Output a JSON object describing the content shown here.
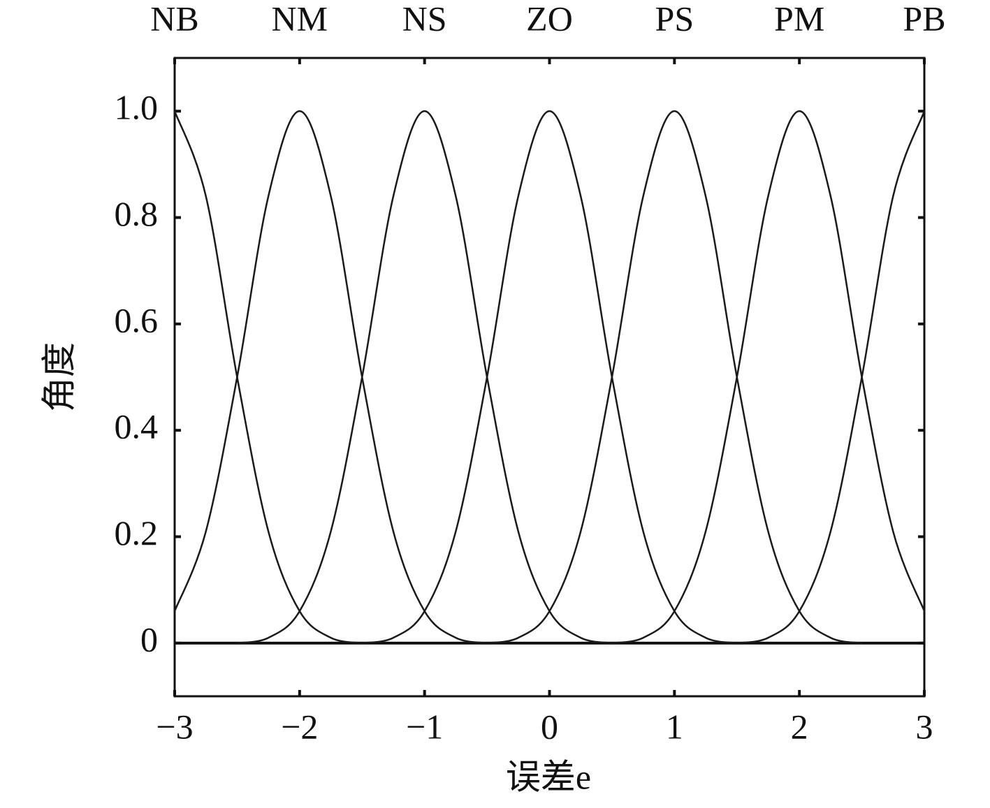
{
  "chart_data": {
    "type": "line",
    "x_label": "误差e",
    "y_label": "角度",
    "x": [
      -3,
      -2.75,
      -2.5,
      -2.25,
      -2,
      -1.75,
      -1.5,
      -1.25,
      -1,
      -0.75,
      -0.5,
      -0.25,
      0,
      0.25,
      0.5,
      0.75,
      1,
      1.25,
      1.5,
      1.75,
      2,
      2.25,
      2.5,
      2.75,
      3
    ],
    "series": [
      {
        "name": "NB",
        "color": "#1a1a1a",
        "values": [
          1,
          0.84,
          0.5,
          0.21,
          0.06,
          0.01,
          0,
          null,
          null,
          null,
          null,
          null,
          null,
          null,
          null,
          null,
          null,
          null,
          null,
          null,
          null,
          null,
          null,
          null,
          null
        ]
      },
      {
        "name": "NM",
        "color": "#1a1a1a",
        "values": [
          0.06,
          0.21,
          0.5,
          0.84,
          1,
          0.84,
          0.5,
          0.21,
          0.06,
          0.01,
          0,
          null,
          null,
          null,
          null,
          null,
          null,
          null,
          null,
          null,
          null,
          null,
          null,
          null,
          null
        ]
      },
      {
        "name": "NS",
        "color": "#1a1a1a",
        "values": [
          null,
          null,
          0,
          0.01,
          0.06,
          0.21,
          0.5,
          0.84,
          1,
          0.84,
          0.5,
          0.21,
          0.06,
          0.01,
          0,
          null,
          null,
          null,
          null,
          null,
          null,
          null,
          null,
          null,
          null
        ]
      },
      {
        "name": "ZO",
        "color": "#1a1a1a",
        "values": [
          null,
          null,
          null,
          null,
          null,
          null,
          0,
          0.01,
          0.06,
          0.21,
          0.5,
          0.84,
          1,
          0.84,
          0.5,
          0.21,
          0.06,
          0.01,
          0,
          null,
          null,
          null,
          null,
          null,
          null
        ]
      },
      {
        "name": "PS",
        "color": "#1a1a1a",
        "values": [
          null,
          null,
          null,
          null,
          null,
          null,
          null,
          null,
          null,
          null,
          0,
          0.01,
          0.06,
          0.21,
          0.5,
          0.84,
          1,
          0.84,
          0.5,
          0.21,
          0.06,
          0.01,
          0,
          null,
          null
        ]
      },
      {
        "name": "PM",
        "color": "#1a1a1a",
        "values": [
          null,
          null,
          null,
          null,
          null,
          null,
          null,
          null,
          null,
          null,
          null,
          null,
          null,
          null,
          0,
          0.01,
          0.06,
          0.21,
          0.5,
          0.84,
          1,
          0.84,
          0.5,
          0.21,
          0.06
        ]
      },
      {
        "name": "PB",
        "color": "#1a1a1a",
        "values": [
          null,
          null,
          null,
          null,
          null,
          null,
          null,
          null,
          null,
          null,
          null,
          null,
          null,
          null,
          null,
          null,
          null,
          null,
          0,
          0.01,
          0.06,
          0.21,
          0.5,
          0.84,
          1
        ]
      }
    ],
    "xlim": [
      -3,
      3
    ],
    "xticks": [
      {
        "value": -3,
        "label": "−3"
      },
      {
        "value": -2,
        "label": "−2"
      },
      {
        "value": -1,
        "label": "−1"
      },
      0,
      1,
      2,
      3
    ],
    "ylim": [
      -0.1,
      1.1
    ],
    "yticks": [
      0,
      0.2,
      0.4,
      0.6,
      0.8,
      {
        "value": 1,
        "label": "1.0"
      }
    ],
    "grid": false
  }
}
